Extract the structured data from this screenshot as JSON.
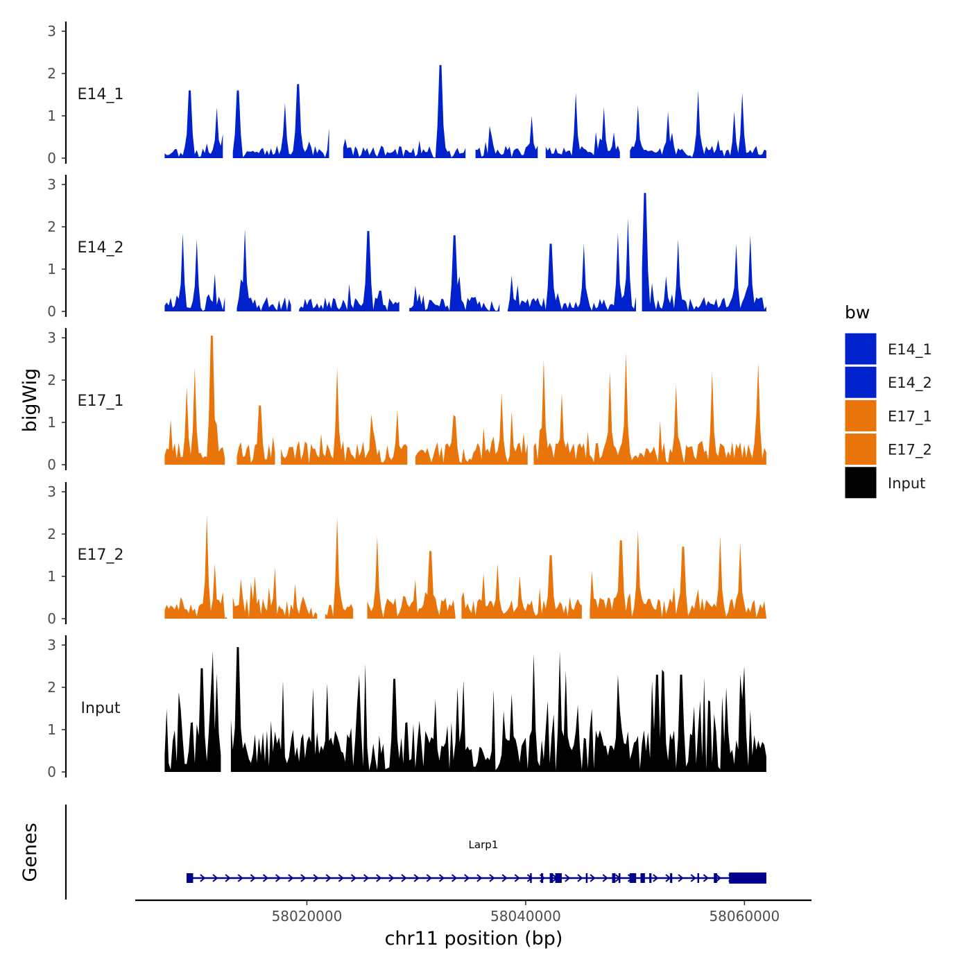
{
  "chart_data": {
    "type": "area",
    "title": "",
    "xlabel": "chr11 position (bp)",
    "ylabel": "bigWig",
    "gene_panel_label": "Genes",
    "xlim": [
      58004500,
      58066000
    ],
    "x_ticks": [
      58020000,
      58040000,
      58060000
    ],
    "x_tick_labels": [
      "58020000",
      "58040000",
      "58060000"
    ],
    "ylim": [
      0,
      3.2
    ],
    "y_ticks": [
      0,
      1,
      2,
      3
    ],
    "y_tick_labels": [
      "0",
      "1",
      "2",
      "3"
    ],
    "region": {
      "start": 58007000,
      "end": 58062000
    },
    "series": [
      {
        "name": "E14_1",
        "color": "#0022cc",
        "seed": 11,
        "base": 0.22,
        "peak_prob": 0.08,
        "peaks": [
          [
            58009300,
            1.6
          ],
          [
            58011800,
            1.2
          ],
          [
            58013700,
            1.6
          ],
          [
            58018000,
            1.3
          ],
          [
            58019200,
            1.75
          ],
          [
            58032200,
            2.2
          ],
          [
            58040600,
            1.0
          ],
          [
            58044600,
            1.55
          ],
          [
            58047200,
            1.2
          ],
          [
            58050300,
            1.25
          ],
          [
            58053000,
            1.1
          ],
          [
            58055800,
            1.6
          ],
          [
            58059000,
            1.1
          ],
          [
            58059800,
            1.55
          ]
        ],
        "gaps": [
          [
            58012400,
            58013100
          ],
          [
            58022200,
            58023300
          ],
          [
            58034600,
            58035400
          ],
          [
            58041200,
            58041800
          ],
          [
            58048800,
            58049400
          ]
        ]
      },
      {
        "name": "E14_2",
        "color": "#0022cc",
        "seed": 23,
        "base": 0.26,
        "peak_prob": 0.1,
        "peaks": [
          [
            58008600,
            1.85
          ],
          [
            58010000,
            1.7
          ],
          [
            58014300,
            1.95
          ],
          [
            58025600,
            1.9
          ],
          [
            58033500,
            1.8
          ],
          [
            58042300,
            1.6
          ],
          [
            58045300,
            1.6
          ],
          [
            58048500,
            1.85
          ],
          [
            58049400,
            2.2
          ],
          [
            58050900,
            2.8
          ],
          [
            58054000,
            1.7
          ],
          [
            58059200,
            1.6
          ],
          [
            58060600,
            1.8
          ]
        ],
        "gaps": [
          [
            58012600,
            58013500
          ],
          [
            58018600,
            58019100
          ],
          [
            58028600,
            58029200
          ],
          [
            58037800,
            58038300
          ],
          [
            58050200,
            58050600
          ]
        ]
      },
      {
        "name": "E17_1",
        "color": "#e8740a",
        "seed": 37,
        "base": 0.42,
        "peak_prob": 0.12,
        "peaks": [
          [
            58009000,
            1.85
          ],
          [
            58009700,
            2.3
          ],
          [
            58011300,
            3.05
          ],
          [
            58015700,
            1.4
          ],
          [
            58022700,
            2.3
          ],
          [
            58028200,
            1.3
          ],
          [
            58037800,
            1.7
          ],
          [
            58041700,
            2.5
          ],
          [
            58043300,
            1.7
          ],
          [
            58047700,
            2.2
          ],
          [
            58049200,
            2.65
          ],
          [
            58053800,
            1.9
          ],
          [
            58057000,
            2.2
          ],
          [
            58061200,
            2.4
          ]
        ],
        "gaps": [
          [
            58012600,
            58013500
          ],
          [
            58017100,
            58017600
          ],
          [
            58029300,
            58029900
          ],
          [
            58040200,
            58040700
          ]
        ]
      },
      {
        "name": "E17_2",
        "color": "#e8740a",
        "seed": 51,
        "base": 0.38,
        "peak_prob": 0.12,
        "peaks": [
          [
            58010900,
            2.45
          ],
          [
            58011600,
            1.3
          ],
          [
            58015200,
            1.0
          ],
          [
            58022800,
            2.4
          ],
          [
            58026500,
            1.95
          ],
          [
            58031300,
            1.6
          ],
          [
            58037500,
            1.3
          ],
          [
            58042300,
            1.5
          ],
          [
            58048700,
            1.85
          ],
          [
            58050300,
            2.1
          ],
          [
            58054400,
            1.7
          ],
          [
            58057800,
            1.95
          ],
          [
            58059600,
            1.8
          ]
        ],
        "gaps": [
          [
            58012700,
            58013200
          ],
          [
            58021100,
            58021500
          ],
          [
            58024400,
            58025400
          ],
          [
            58033700,
            58034100
          ],
          [
            58045300,
            58045800
          ]
        ]
      },
      {
        "name": "Input",
        "color": "#000000",
        "seed": 67,
        "base": 0.75,
        "peak_prob": 0.16,
        "peaks": [
          [
            58010400,
            2.45
          ],
          [
            58011400,
            2.85
          ],
          [
            58013700,
            2.95
          ],
          [
            58021800,
            2.1
          ],
          [
            58024800,
            2.3
          ],
          [
            58028000,
            2.2
          ],
          [
            58033800,
            2.0
          ],
          [
            58040700,
            2.8
          ],
          [
            58043100,
            2.85
          ],
          [
            58043700,
            2.4
          ],
          [
            58048400,
            2.3
          ],
          [
            58052000,
            2.3
          ],
          [
            58054200,
            2.3
          ],
          [
            58058400,
            2.0
          ],
          [
            58060000,
            2.5
          ]
        ],
        "gaps": [
          [
            58012300,
            58012900
          ]
        ]
      }
    ],
    "legend": {
      "title": "bw",
      "placement": "right",
      "entries": [
        {
          "label": "E14_1",
          "color": "#0022cc"
        },
        {
          "label": "E14_2",
          "color": "#0022cc"
        },
        {
          "label": "E17_1",
          "color": "#e8740a"
        },
        {
          "label": "E17_2",
          "color": "#e8740a"
        },
        {
          "label": "Input",
          "color": "#000000"
        }
      ]
    },
    "gene": {
      "name": "Larp1",
      "color": "#00008b",
      "strand": "+",
      "start": 58009000,
      "end": 58062000,
      "exons": [
        [
          58009000,
          58009600
        ],
        [
          58040400,
          58040500
        ],
        [
          58041400,
          58041600
        ],
        [
          58042200,
          58042500
        ],
        [
          58042700,
          58043300
        ],
        [
          58045500,
          58045650
        ],
        [
          58047900,
          58048200
        ],
        [
          58048500,
          58048600
        ],
        [
          58049500,
          58050100
        ],
        [
          58050500,
          58050900
        ],
        [
          58051300,
          58051500
        ],
        [
          58053200,
          58053400
        ],
        [
          58055700,
          58055800
        ],
        [
          58057200,
          58057500
        ],
        [
          58058600,
          58062000
        ]
      ]
    }
  }
}
